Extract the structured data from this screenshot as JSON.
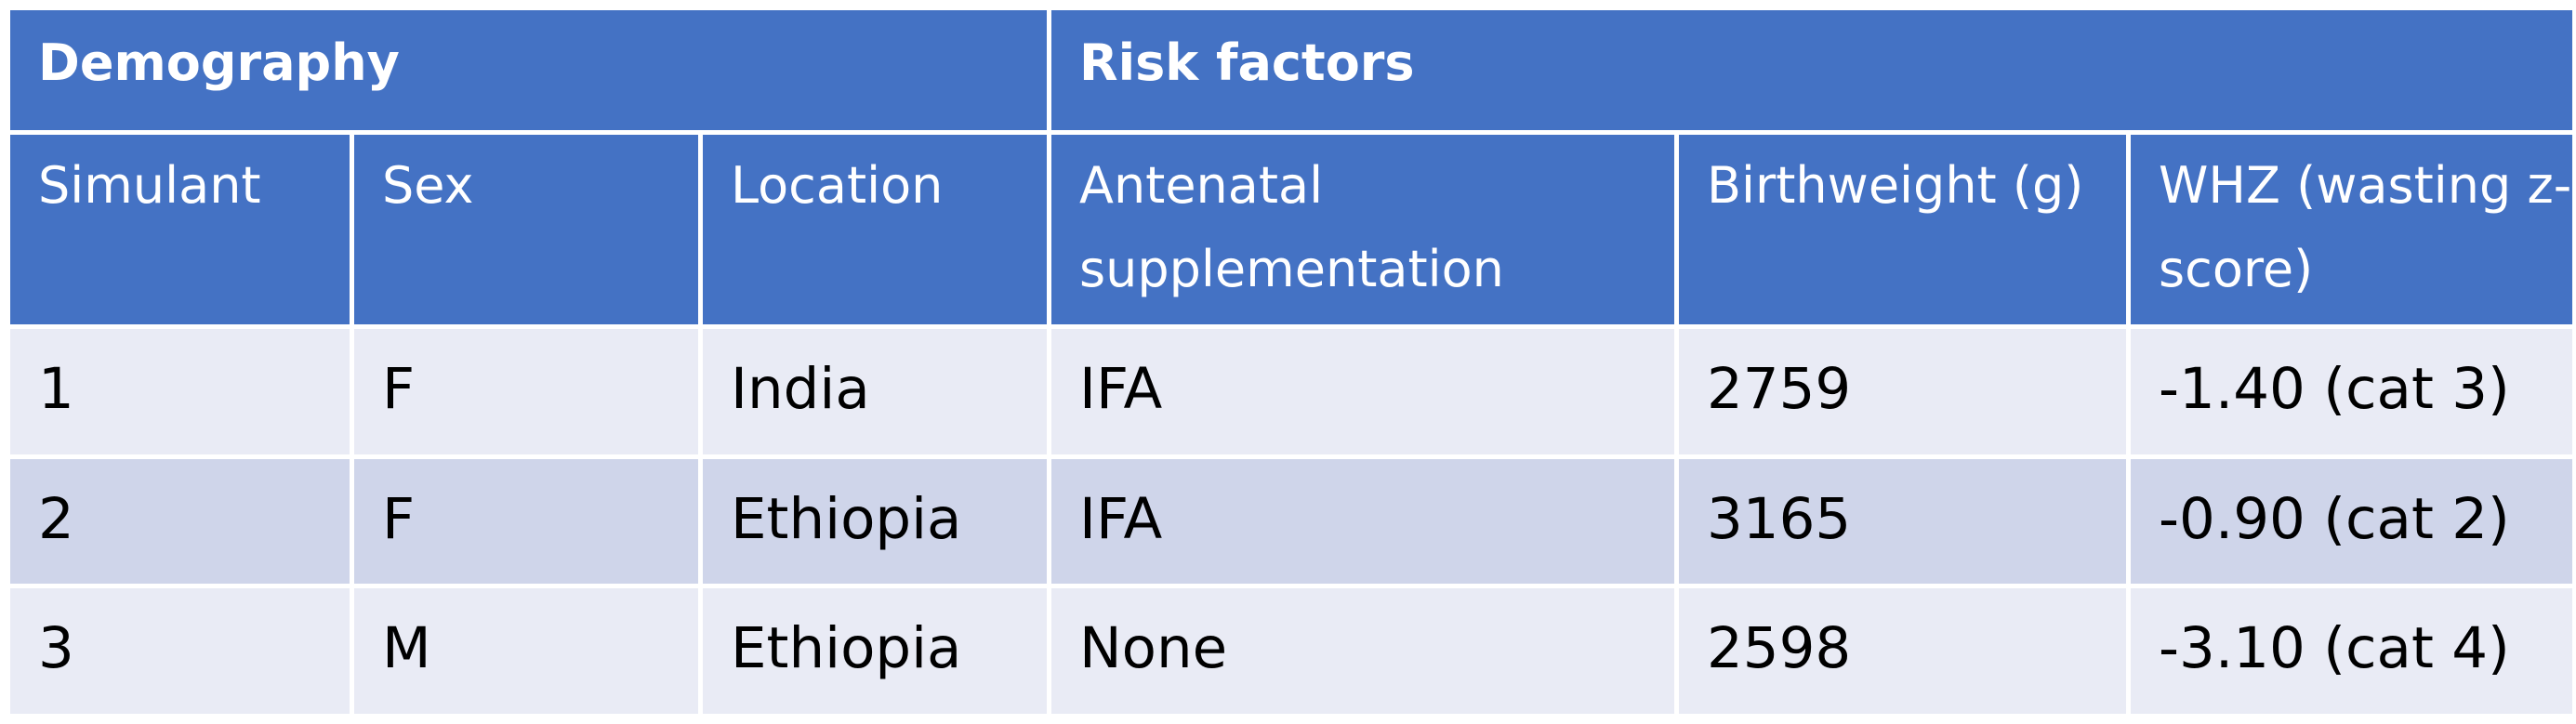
{
  "group_headers": {
    "demography": "Demography",
    "risk_factors": "Risk factors"
  },
  "columns": [
    "Simulant",
    "Sex",
    "Location",
    "Antenatal supplementation",
    "Birthweight (g)",
    "WHZ (wasting z-score)"
  ],
  "rows": [
    [
      "1",
      "F",
      "India",
      "IFA",
      "2759",
      "-1.40 (cat 3)"
    ],
    [
      "2",
      "F",
      "Ethiopia",
      "IFA",
      "3165",
      "-0.90 (cat 2)"
    ],
    [
      "3",
      "M",
      "Ethiopia",
      "None",
      "2598",
      "-3.10 (cat 4)"
    ]
  ],
  "colors": {
    "header_bg": "#4472C4",
    "row_light": "#E9EBF5",
    "row_dark": "#CFD5EA"
  }
}
